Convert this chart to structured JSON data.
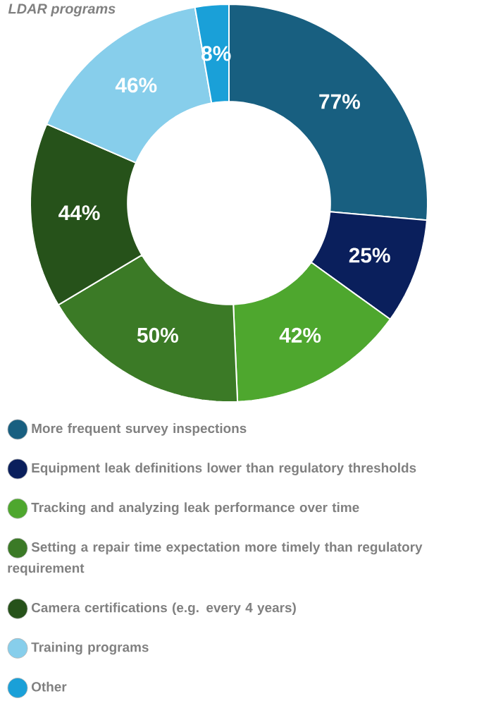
{
  "chart_data": {
    "type": "donut",
    "title": "LDAR programs",
    "categories": [
      "More frequent survey inspections",
      "Equipment leak definitions lower than regulatory thresholds",
      "Tracking and analyzing leak performance over time",
      "Setting a repair time expectation more timely than regulatory requirement",
      "Camera certifications (e.g. every 4 years)",
      "Training programs",
      "Other"
    ],
    "values": [
      77,
      25,
      42,
      50,
      44,
      46,
      8
    ],
    "value_labels": [
      "77%",
      "25%",
      "42%",
      "50%",
      "44%",
      "46%",
      "8%"
    ],
    "colors": [
      "#185f80",
      "#0a1f5c",
      "#4ea72e",
      "#3b7a26",
      "#26521a",
      "#87ceeb",
      "#1aa0d8"
    ],
    "legend": "bottom"
  }
}
